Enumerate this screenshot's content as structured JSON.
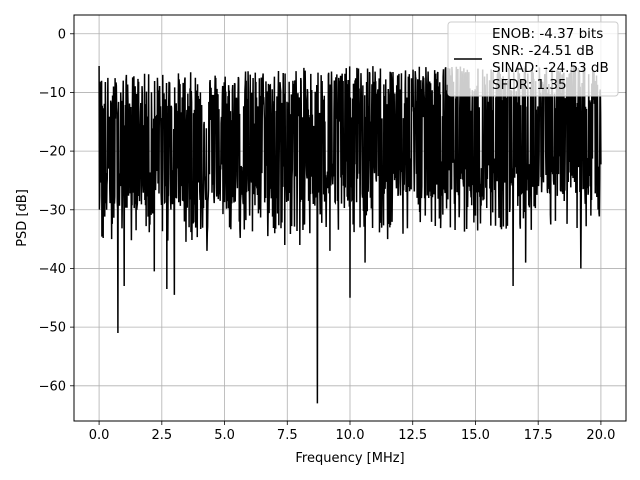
{
  "chart_data": {
    "type": "line",
    "xlabel": "Frequency [MHz]",
    "ylabel": "PSD [dB]",
    "xlim": [
      -1,
      21
    ],
    "ylim": [
      -66,
      3.2
    ],
    "xticks": [
      0.0,
      2.5,
      5.0,
      7.5,
      10.0,
      12.5,
      15.0,
      17.5,
      20.0
    ],
    "xtick_labels": [
      "0.0",
      "2.5",
      "5.0",
      "7.5",
      "10.0",
      "12.5",
      "15.0",
      "17.5",
      "20.0"
    ],
    "yticks": [
      0,
      -10,
      -20,
      -30,
      -40,
      -50,
      -60
    ],
    "ytick_labels": [
      "0",
      "−10",
      "−20",
      "−30",
      "−40",
      "−50",
      "−60"
    ],
    "grid": true,
    "legend_position": "upper-right",
    "legend_entries": [
      "ENOB: -4.37 bits",
      "SNR: -24.51 dB",
      "SINAD: -24.53 dB",
      "SFDR: 1.35"
    ],
    "line_color": "#000000",
    "series": [
      {
        "x_start": 0.0,
        "x_end": 20.0,
        "baseline_db": -18,
        "peak_points": [
          [
            0.0,
            -5.5
          ],
          [
            0.05,
            -15.5
          ],
          [
            0.1,
            -8
          ],
          [
            0.15,
            -20
          ]
        ],
        "dip_points": [
          [
            0.3,
            -30
          ],
          [
            0.5,
            -35
          ],
          [
            0.75,
            -51
          ],
          [
            1.0,
            -43
          ],
          [
            1.5,
            -30
          ],
          [
            2.2,
            -40.5
          ],
          [
            2.7,
            -43.5
          ],
          [
            3.0,
            -44.5
          ],
          [
            4.3,
            -37
          ],
          [
            5.2,
            -33
          ],
          [
            6.0,
            -31
          ],
          [
            7.0,
            -34
          ],
          [
            7.4,
            -36
          ],
          [
            8.0,
            -36
          ],
          [
            8.4,
            -34
          ],
          [
            8.7,
            -63
          ],
          [
            9.2,
            -37
          ],
          [
            10.0,
            -45
          ],
          [
            10.6,
            -39
          ],
          [
            11.5,
            -35
          ],
          [
            13.0,
            -31
          ],
          [
            14.0,
            -33
          ],
          [
            15.0,
            -31
          ],
          [
            16.5,
            -43
          ],
          [
            17.0,
            -39
          ],
          [
            19.2,
            -40
          ],
          [
            19.6,
            -31
          ]
        ]
      }
    ]
  }
}
